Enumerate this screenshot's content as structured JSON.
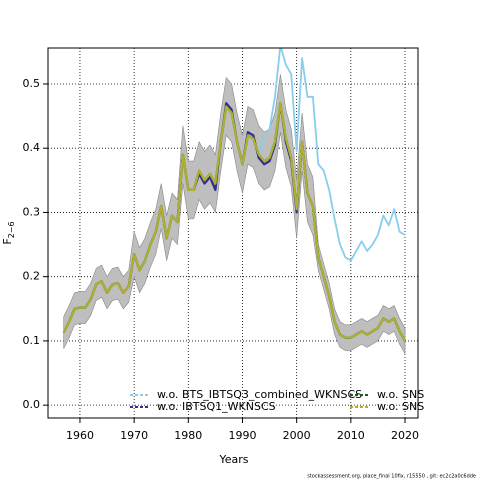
{
  "chart_data": {
    "type": "line",
    "xlabel": "Years",
    "ylabel": "F",
    "ylabel_sub": "2−6",
    "footnote": "stockassessment.org, place_final 10fix, r15550 , git: ec2c2a0c6dde",
    "xlim": [
      1954.1,
      2022.4
    ],
    "ylim": [
      -0.02,
      0.556
    ],
    "xticks": [
      1960,
      1970,
      1980,
      1990,
      2000,
      2010,
      2020
    ],
    "yticks": [
      {
        "value": 0,
        "label": "0.0"
      },
      0.1,
      0.2,
      0.3,
      0.4,
      0.5
    ],
    "grid": true,
    "x": [
      1957,
      1958,
      1959,
      1960,
      1961,
      1962,
      1963,
      1964,
      1965,
      1966,
      1967,
      1968,
      1969,
      1970,
      1971,
      1972,
      1973,
      1974,
      1975,
      1976,
      1977,
      1978,
      1979,
      1980,
      1981,
      1982,
      1983,
      1984,
      1985,
      1986,
      1987,
      1988,
      1989,
      1990,
      1991,
      1992,
      1993,
      1994,
      1995,
      1996,
      1997,
      1998,
      1999,
      2000,
      2001,
      2002,
      2003,
      2004,
      2005,
      2006,
      2007,
      2008,
      2009,
      2010,
      2011,
      2012,
      2013,
      2014,
      2015,
      2016,
      2017,
      2018,
      2019,
      2020
    ],
    "band": {
      "color": "#bebebe",
      "upper": [
        0.138,
        0.155,
        0.175,
        0.177,
        0.177,
        0.19,
        0.213,
        0.218,
        0.2,
        0.213,
        0.215,
        0.2,
        0.21,
        0.27,
        0.245,
        0.26,
        0.285,
        0.305,
        0.345,
        0.295,
        0.33,
        0.32,
        0.435,
        0.38,
        0.38,
        0.41,
        0.395,
        0.405,
        0.39,
        0.455,
        0.51,
        0.5,
        0.455,
        0.42,
        0.465,
        0.46,
        0.435,
        0.425,
        0.43,
        0.455,
        0.515,
        0.46,
        0.43,
        0.35,
        0.455,
        0.375,
        0.355,
        0.25,
        0.22,
        0.19,
        0.15,
        0.13,
        0.125,
        0.125,
        0.13,
        0.135,
        0.13,
        0.135,
        0.14,
        0.155,
        0.15,
        0.155,
        0.135,
        0.12
      ],
      "lower": [
        0.088,
        0.105,
        0.125,
        0.127,
        0.127,
        0.14,
        0.163,
        0.168,
        0.15,
        0.163,
        0.165,
        0.15,
        0.16,
        0.2,
        0.175,
        0.19,
        0.215,
        0.235,
        0.275,
        0.225,
        0.26,
        0.25,
        0.345,
        0.29,
        0.29,
        0.32,
        0.305,
        0.315,
        0.3,
        0.365,
        0.42,
        0.41,
        0.365,
        0.33,
        0.375,
        0.37,
        0.345,
        0.335,
        0.34,
        0.365,
        0.425,
        0.37,
        0.34,
        0.26,
        0.365,
        0.285,
        0.265,
        0.21,
        0.18,
        0.15,
        0.11,
        0.09,
        0.085,
        0.085,
        0.09,
        0.095,
        0.09,
        0.095,
        0.1,
        0.115,
        0.11,
        0.115,
        0.095,
        0.08
      ]
    },
    "series": [
      {
        "name": "w.o. BTS_IBTSQ3_combined_WKNSCS",
        "color": "#87ceeb",
        "values": [
          0.113,
          0.13,
          0.15,
          0.152,
          0.152,
          0.165,
          0.188,
          0.193,
          0.175,
          0.188,
          0.19,
          0.175,
          0.185,
          0.235,
          0.21,
          0.225,
          0.25,
          0.27,
          0.31,
          0.26,
          0.295,
          0.285,
          0.39,
          0.335,
          0.335,
          0.365,
          0.35,
          0.36,
          0.345,
          0.41,
          0.465,
          0.455,
          0.41,
          0.375,
          0.42,
          0.415,
          0.39,
          0.42,
          0.43,
          0.48,
          0.56,
          0.53,
          0.515,
          0.395,
          0.54,
          0.48,
          0.48,
          0.375,
          0.365,
          0.335,
          0.29,
          0.25,
          0.23,
          0.225,
          0.24,
          0.255,
          0.24,
          0.25,
          0.265,
          0.295,
          0.28,
          0.305,
          0.27,
          0.265
        ]
      },
      {
        "name": "w.o. IBTSQ1_WKNSCS",
        "color": "#2e2e8c",
        "values": [
          0.113,
          0.13,
          0.15,
          0.152,
          0.152,
          0.165,
          0.188,
          0.193,
          0.175,
          0.188,
          0.19,
          0.175,
          0.185,
          0.235,
          0.21,
          0.225,
          0.25,
          0.27,
          0.31,
          0.26,
          0.295,
          0.285,
          0.39,
          0.335,
          0.335,
          0.36,
          0.345,
          0.355,
          0.335,
          0.41,
          0.47,
          0.46,
          0.41,
          0.375,
          0.425,
          0.42,
          0.385,
          0.375,
          0.38,
          0.405,
          0.47,
          0.41,
          0.38,
          0.3,
          0.41,
          0.33,
          0.31,
          0.23,
          0.2,
          0.17,
          0.13,
          0.11,
          0.105,
          0.105,
          0.11,
          0.115,
          0.11,
          0.115,
          0.12,
          0.135,
          0.13,
          0.135,
          0.115,
          0.1
        ]
      },
      {
        "name": "w.o. SNS",
        "color": "#1a5e1a",
        "values": [
          0.113,
          0.13,
          0.15,
          0.152,
          0.152,
          0.165,
          0.188,
          0.193,
          0.175,
          0.188,
          0.19,
          0.175,
          0.185,
          0.235,
          0.21,
          0.225,
          0.25,
          0.27,
          0.31,
          0.26,
          0.295,
          0.285,
          0.39,
          0.335,
          0.335,
          0.365,
          0.35,
          0.36,
          0.345,
          0.41,
          0.465,
          0.455,
          0.41,
          0.375,
          0.42,
          0.415,
          0.39,
          0.38,
          0.385,
          0.41,
          0.47,
          0.415,
          0.385,
          0.305,
          0.41,
          0.33,
          0.31,
          0.23,
          0.2,
          0.17,
          0.13,
          0.11,
          0.105,
          0.105,
          0.11,
          0.115,
          0.11,
          0.115,
          0.12,
          0.135,
          0.13,
          0.135,
          0.115,
          0.1
        ]
      },
      {
        "name": "w.o. SNS",
        "color": "#b0b030",
        "values": [
          0.113,
          0.13,
          0.15,
          0.152,
          0.152,
          0.165,
          0.188,
          0.193,
          0.175,
          0.188,
          0.19,
          0.175,
          0.185,
          0.235,
          0.21,
          0.225,
          0.25,
          0.27,
          0.31,
          0.26,
          0.295,
          0.285,
          0.39,
          0.335,
          0.335,
          0.365,
          0.35,
          0.36,
          0.345,
          0.41,
          0.465,
          0.455,
          0.41,
          0.375,
          0.42,
          0.415,
          0.39,
          0.38,
          0.385,
          0.41,
          0.47,
          0.415,
          0.385,
          0.305,
          0.41,
          0.33,
          0.31,
          0.23,
          0.2,
          0.17,
          0.13,
          0.11,
          0.105,
          0.105,
          0.11,
          0.115,
          0.11,
          0.115,
          0.12,
          0.135,
          0.13,
          0.135,
          0.115,
          0.1
        ]
      }
    ]
  }
}
